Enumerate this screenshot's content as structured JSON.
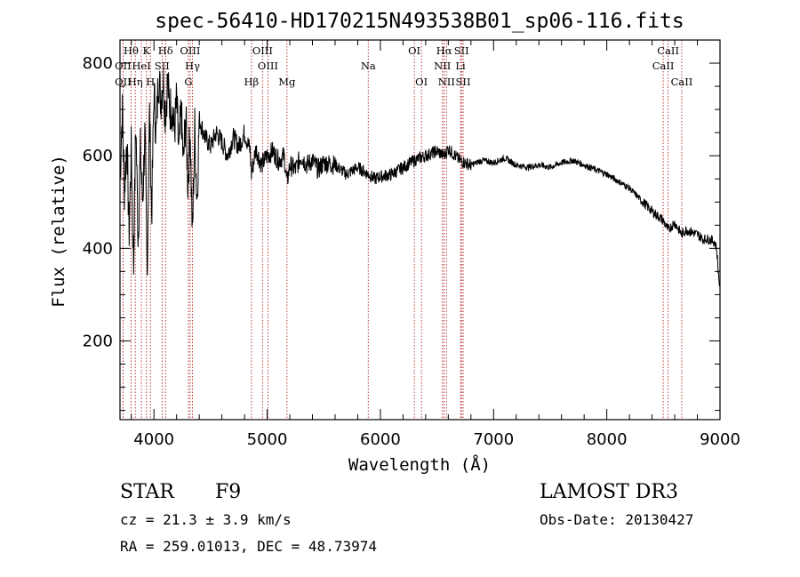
{
  "chart_data": {
    "type": "line",
    "title": "spec-56410-HD170215N493538B01_sp06-116.fits",
    "xlabel": "Wavelength (Å)",
    "ylabel": "Flux (relative)",
    "xlim": [
      3700,
      9000
    ],
    "ylim": [
      30,
      850
    ],
    "xticks": [
      4000,
      5000,
      6000,
      7000,
      8000,
      9000
    ],
    "yticks": [
      200,
      400,
      600,
      800
    ],
    "series": [
      {
        "name": "flux",
        "x": [
          3700,
          3720,
          3740,
          3760,
          3780,
          3800,
          3820,
          3840,
          3860,
          3880,
          3900,
          3920,
          3940,
          3960,
          3980,
          4000,
          4020,
          4040,
          4060,
          4080,
          4100,
          4120,
          4140,
          4160,
          4180,
          4200,
          4220,
          4240,
          4260,
          4280,
          4300,
          4320,
          4340,
          4360,
          4380,
          4400,
          4450,
          4500,
          4550,
          4600,
          4650,
          4700,
          4750,
          4800,
          4850,
          4861,
          4900,
          4950,
          5000,
          5050,
          5100,
          5150,
          5175,
          5200,
          5250,
          5300,
          5350,
          5400,
          5450,
          5500,
          5600,
          5700,
          5800,
          5893,
          5950,
          6000,
          6100,
          6200,
          6300,
          6400,
          6500,
          6563,
          6600,
          6700,
          6800,
          6900,
          7000,
          7100,
          7200,
          7300,
          7400,
          7500,
          7600,
          7700,
          7800,
          7900,
          8000,
          8100,
          8200,
          8300,
          8400,
          8498,
          8542,
          8600,
          8662,
          8700,
          8750,
          8800,
          8850,
          8900,
          8950,
          8970,
          8985,
          9000
        ],
        "y": [
          550,
          700,
          520,
          640,
          430,
          620,
          360,
          680,
          420,
          610,
          500,
          650,
          340,
          700,
          470,
          740,
          640,
          780,
          720,
          770,
          690,
          760,
          700,
          710,
          650,
          720,
          600,
          700,
          580,
          690,
          540,
          660,
          420,
          660,
          500,
          680,
          640,
          620,
          650,
          630,
          600,
          640,
          620,
          650,
          610,
          560,
          615,
          580,
          600,
          610,
          590,
          600,
          540,
          580,
          570,
          600,
          580,
          590,
          570,
          585,
          580,
          560,
          575,
          560,
          550,
          555,
          560,
          575,
          590,
          600,
          610,
          600,
          615,
          590,
          580,
          590,
          585,
          595,
          580,
          575,
          580,
          575,
          585,
          590,
          580,
          570,
          560,
          545,
          530,
          505,
          480,
          460,
          440,
          455,
          430,
          440,
          435,
          430,
          420,
          420,
          415,
          400,
          350,
          310
        ]
      }
    ],
    "lines": [
      {
        "label": "Hθ",
        "x": 3798,
        "row": 1
      },
      {
        "label": "OII",
        "x": 3727,
        "row": 2
      },
      {
        "label": "OII",
        "x": 3727,
        "row": 3
      },
      {
        "label": "Hη",
        "x": 3835,
        "row": 3
      },
      {
        "label": "HeI",
        "x": 3889,
        "row": 2
      },
      {
        "label": "K",
        "x": 3934,
        "row": 1
      },
      {
        "label": "H",
        "x": 3969,
        "row": 3
      },
      {
        "label": "SII",
        "x": 4072,
        "row": 2
      },
      {
        "label": "Hδ",
        "x": 4102,
        "row": 1
      },
      {
        "label": "OIII",
        "x": 4320,
        "row": 1
      },
      {
        "label": "Hγ",
        "x": 4340,
        "row": 2
      },
      {
        "label": "G",
        "x": 4304,
        "row": 3
      },
      {
        "label": "Hβ",
        "x": 4861,
        "row": 3
      },
      {
        "label": "OIII",
        "x": 4959,
        "row": 1
      },
      {
        "label": "OIII",
        "x": 5007,
        "row": 2
      },
      {
        "label": "Mg",
        "x": 5175,
        "row": 3
      },
      {
        "label": "Na",
        "x": 5893,
        "row": 2
      },
      {
        "label": "OI",
        "x": 6300,
        "row": 1
      },
      {
        "label": "OI",
        "x": 6363,
        "row": 3
      },
      {
        "label": "Hα",
        "x": 6563,
        "row": 1
      },
      {
        "label": "NII",
        "x": 6548,
        "row": 2
      },
      {
        "label": "NII",
        "x": 6584,
        "row": 3
      },
      {
        "label": "SII",
        "x": 6717,
        "row": 1
      },
      {
        "label": "Li",
        "x": 6708,
        "row": 2
      },
      {
        "label": "SII",
        "x": 6731,
        "row": 3
      },
      {
        "label": "CaII",
        "x": 8498,
        "row": 2
      },
      {
        "label": "CaII",
        "x": 8542,
        "row": 1
      },
      {
        "label": "CaII",
        "x": 8662,
        "row": 3
      }
    ]
  },
  "info": {
    "object_class": "STAR",
    "subclass": "F9",
    "redshift": "cz = 21.3 ± 3.9 km/s",
    "coords": "RA = 259.01013, DEC =  48.73974",
    "survey": "LAMOST DR3",
    "obs_date": "Obs-Date: 20130427"
  },
  "colors": {
    "spectrum": "#000000",
    "line_marker": "#b22222",
    "axes": "#000000"
  }
}
